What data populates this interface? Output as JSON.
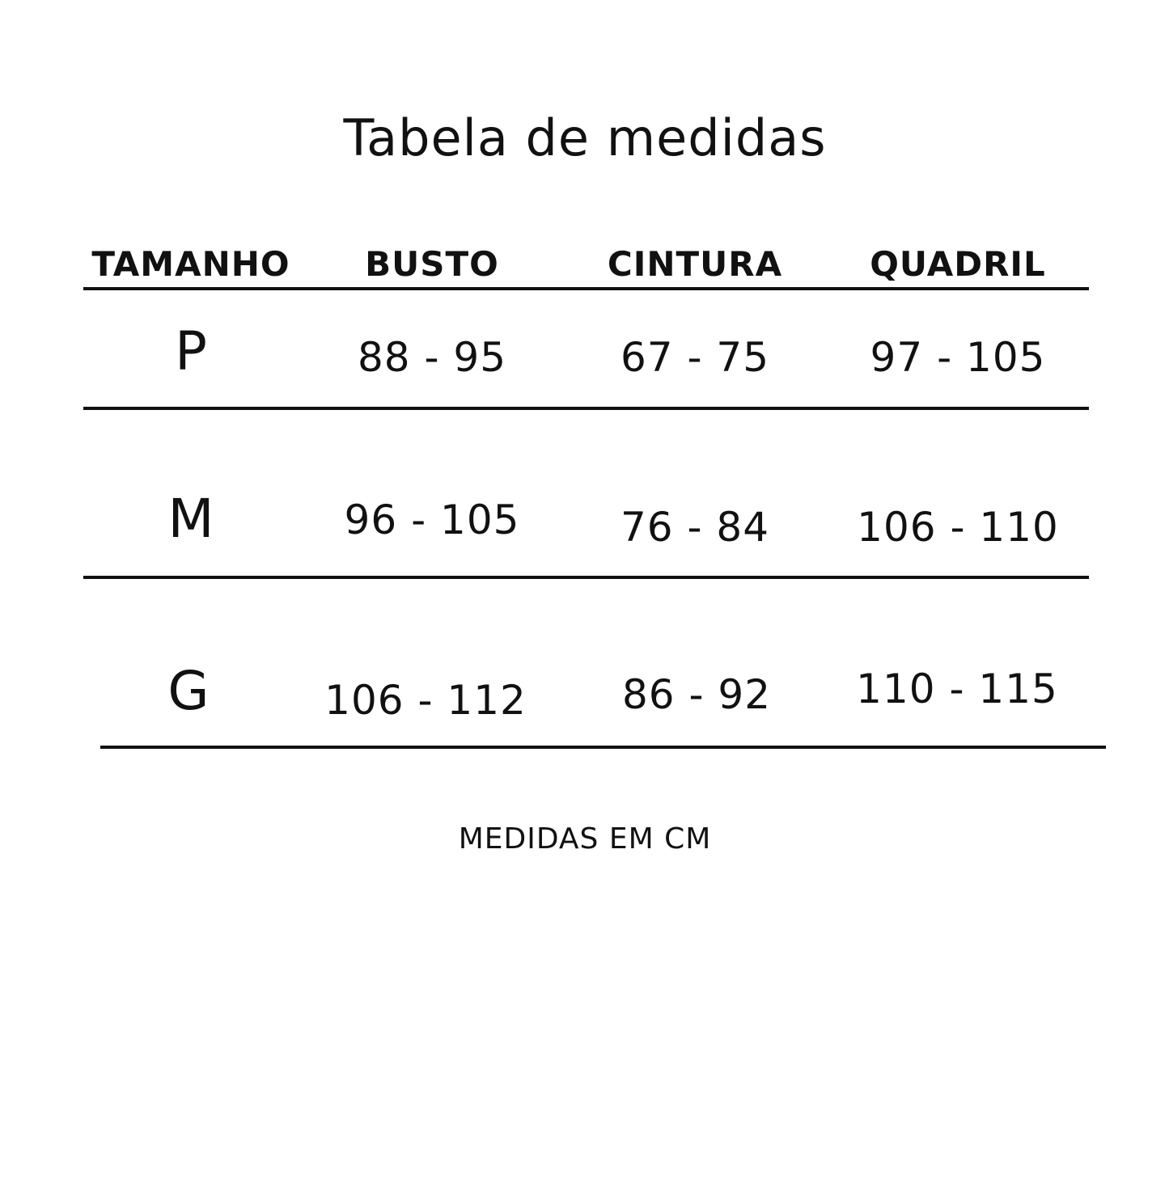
{
  "title": "Tabela de medidas",
  "headers": [
    "TAMANHO",
    "BUSTO",
    "CINTURA",
    "QUADRIL"
  ],
  "rows": [
    {
      "size": "P",
      "busto": "88 - 95",
      "cintura": "67 - 75",
      "quadril": "97 - 105"
    },
    {
      "size": "M",
      "busto": "96 - 105",
      "cintura": "76 - 84",
      "quadril": "106 - 110"
    },
    {
      "size": "G",
      "busto": "106 - 112",
      "cintura": "86 - 92",
      "quadril": "110 - 115"
    }
  ],
  "footer": "MEDIDAS EM CM"
}
